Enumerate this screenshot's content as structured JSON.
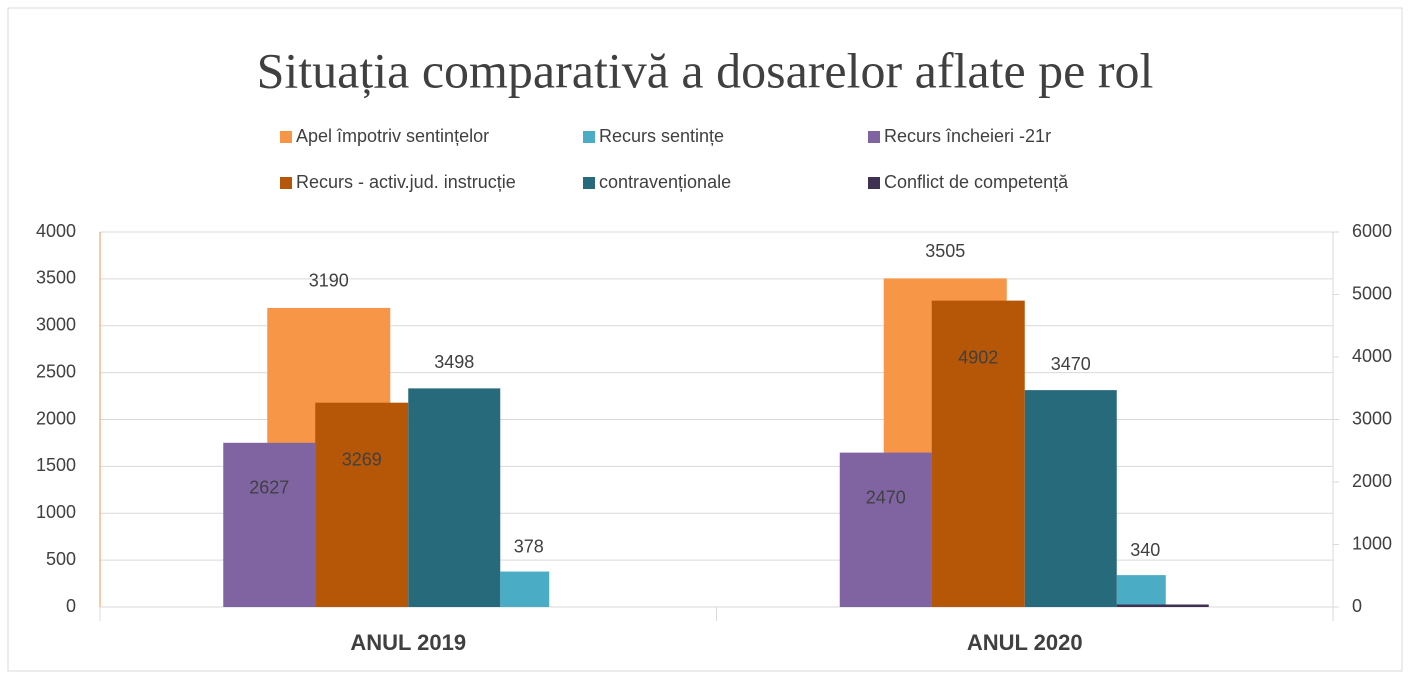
{
  "chart_data": {
    "type": "bar",
    "title": "Situația comparativă a dosarelor aflate pe rol",
    "categories": [
      "ANUL 2019",
      "ANUL 2020"
    ],
    "series": [
      {
        "name": "Apel împotriv sentințelor",
        "color": "#f79646",
        "values": [
          3190,
          3505
        ]
      },
      {
        "name": "Recurs  sentințe",
        "color": "#4bacc6",
        "values": [
          378,
          340
        ]
      },
      {
        "name": "Recurs încheieri -21r",
        "color": "#8064a2",
        "values": [
          2627,
          2470
        ],
        "axis": "y2"
      },
      {
        "name": "Recurs - activ.jud. instrucție",
        "color": "#b65708",
        "values": [
          3269,
          4902
        ],
        "axis": "y2"
      },
      {
        "name": "contravenționale",
        "color": "#276a7c",
        "values": [
          3498,
          3470
        ],
        "axis": "y2"
      },
      {
        "name": "Conflict de competență",
        "color": "#3f3151",
        "values": [
          null,
          40
        ],
        "axis": "y2"
      }
    ],
    "ylim": [
      0,
      4000
    ],
    "yticks": [
      0,
      500,
      1000,
      1500,
      2000,
      2500,
      3000,
      3500,
      4000
    ],
    "y2lim": [
      0,
      6000
    ],
    "y2ticks": [
      0,
      1000,
      2000,
      3000,
      4000,
      5000,
      6000
    ],
    "grid": true
  }
}
